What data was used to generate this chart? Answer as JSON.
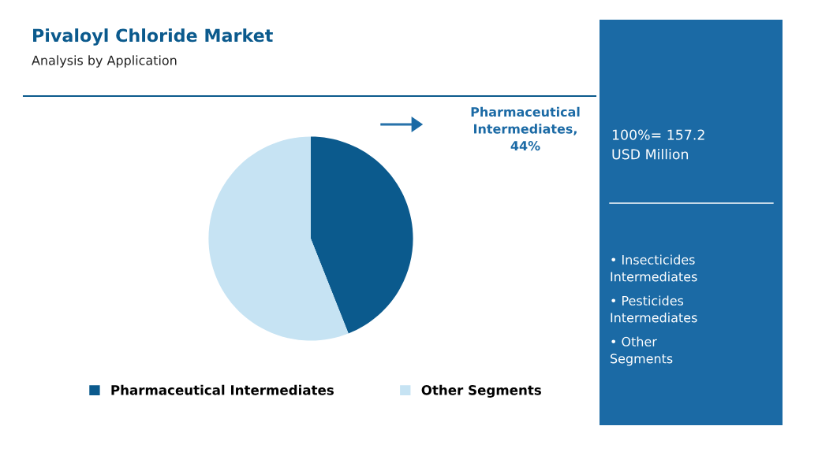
{
  "chart_data": {
    "type": "pie",
    "title": "Pivaloyl Chloride Market",
    "subtitle": "Analysis by Application",
    "categories": [
      "Pharmaceutical Intermediates",
      "Other Segments"
    ],
    "values": [
      44,
      56
    ],
    "colors": [
      "#0b5a8d",
      "#c6e3f3"
    ],
    "value_labels": [
      "Pharmaceutical Intermediates, 44%",
      null
    ],
    "annotations": [
      "100%= 157.2 USD Million",
      "• Insecticides Intermediates",
      "• Pesticides Intermediates",
      "• Other Segments"
    ],
    "legend": "bottom"
  }
}
